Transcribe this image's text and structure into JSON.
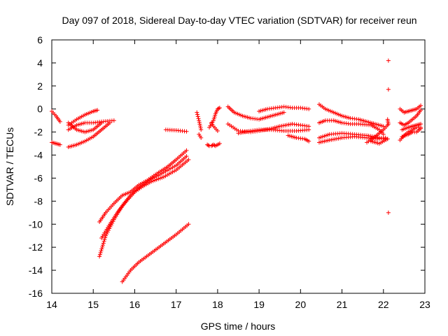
{
  "chart_data": {
    "type": "scatter",
    "title": "Day 097 of 2018, Sidereal Day-to-day VTEC variation (SDTVAR) for receiver reun",
    "xlabel": "GPS time / hours",
    "ylabel": "SDTVAR / TECUs",
    "xlim": [
      14,
      23
    ],
    "ylim": [
      -16,
      6
    ],
    "xticks": [
      "14",
      "15",
      "16",
      "17",
      "18",
      "19",
      "20",
      "21",
      "22",
      "23"
    ],
    "yticks": [
      "-16",
      "-14",
      "-12",
      "-10",
      "-8",
      "-6",
      "-4",
      "-2",
      "0",
      "2",
      "4",
      "6"
    ],
    "grid": false,
    "marker": "plus",
    "color": "#ff0000",
    "tracks": [
      {
        "x": [
          14.0,
          14.1,
          14.2
        ],
        "y": [
          -0.2,
          -0.6,
          -1.1
        ]
      },
      {
        "x": [
          14.0,
          14.1,
          14.2
        ],
        "y": [
          -2.9,
          -3.0,
          -3.1
        ]
      },
      {
        "x": [
          14.4,
          14.6,
          14.8,
          15.0,
          15.1
        ],
        "y": [
          -1.4,
          -0.9,
          -0.5,
          -0.2,
          -0.1
        ]
      },
      {
        "x": [
          14.4,
          14.6,
          14.8,
          15.0,
          15.2,
          15.5
        ],
        "y": [
          -1.8,
          -1.4,
          -1.2,
          -1.2,
          -1.1,
          -1.0
        ]
      },
      {
        "x": [
          14.4,
          14.6,
          14.8,
          15.0,
          15.2
        ],
        "y": [
          -1.2,
          -1.8,
          -2.0,
          -1.8,
          -1.2
        ]
      },
      {
        "x": [
          14.4,
          14.6,
          14.8,
          15.0,
          15.2,
          15.4
        ],
        "y": [
          -3.3,
          -3.1,
          -2.8,
          -2.4,
          -1.8,
          -1.2
        ]
      },
      {
        "x": [
          15.15,
          15.3,
          15.5,
          15.7,
          15.9,
          16.1,
          16.3,
          16.5,
          16.8,
          17.0,
          17.25
        ],
        "y": [
          -9.8,
          -9.0,
          -8.2,
          -7.5,
          -7.2,
          -6.6,
          -6.2,
          -5.7,
          -5.0,
          -4.4,
          -3.6
        ]
      },
      {
        "x": [
          15.15,
          15.3,
          15.5,
          15.7,
          15.9,
          16.1,
          16.4,
          16.7,
          17.0,
          17.25
        ],
        "y": [
          -12.8,
          -11.0,
          -9.6,
          -8.4,
          -7.5,
          -6.8,
          -6.1,
          -5.5,
          -4.9,
          -4.1
        ]
      },
      {
        "x": [
          15.2,
          15.4,
          15.6,
          15.8,
          16.0,
          16.2,
          16.4,
          16.7,
          17.0,
          17.3
        ],
        "y": [
          -11.2,
          -10.0,
          -8.9,
          -8.0,
          -7.2,
          -6.7,
          -6.3,
          -5.9,
          -5.3,
          -4.4
        ]
      },
      {
        "x": [
          15.7,
          15.9,
          16.1,
          16.4,
          16.7,
          17.0,
          17.3
        ],
        "y": [
          -15.0,
          -14.0,
          -13.3,
          -12.5,
          -11.7,
          -10.9,
          -10.0
        ]
      },
      {
        "x": [
          16.75,
          17.0,
          17.25
        ],
        "y": [
          -1.8,
          -1.85,
          -1.95
        ]
      },
      {
        "x": [
          17.5,
          17.55,
          17.6
        ],
        "y": [
          -0.3,
          -1.0,
          -1.8
        ]
      },
      {
        "x": [
          17.55,
          17.6
        ],
        "y": [
          -2.2,
          -2.5
        ]
      },
      {
        "x": [
          17.75,
          17.8,
          17.85,
          17.9,
          17.95,
          18.05
        ],
        "y": [
          -3.1,
          -3.2,
          -3.2,
          -3.1,
          -3.2,
          -3.0
        ]
      },
      {
        "x": [
          17.8,
          17.9,
          17.95,
          18.0,
          18.05
        ],
        "y": [
          -1.6,
          -1.0,
          -0.4,
          0.0,
          0.1
        ]
      },
      {
        "x": [
          17.85,
          17.9,
          18.0
        ],
        "y": [
          -1.2,
          -1.5,
          -1.9
        ]
      },
      {
        "x": [
          18.25,
          18.4,
          18.6,
          18.8,
          19.0,
          19.2,
          19.4,
          19.6
        ],
        "y": [
          0.2,
          -0.3,
          -0.6,
          -0.8,
          -0.9,
          -0.7,
          -0.5,
          -0.3
        ]
      },
      {
        "x": [
          18.25,
          18.5,
          18.8,
          19.0,
          19.3,
          19.5,
          19.8,
          20.0,
          20.2
        ],
        "y": [
          -1.3,
          -1.9,
          -2.0,
          -1.9,
          -1.7,
          -1.5,
          -1.3,
          -1.4,
          -1.5
        ]
      },
      {
        "x": [
          18.5,
          18.8,
          19.0,
          19.3,
          19.6,
          19.9,
          20.2
        ],
        "y": [
          -2.1,
          -1.9,
          -1.8,
          -1.8,
          -1.9,
          -1.9,
          -1.8
        ]
      },
      {
        "x": [
          19.0,
          19.2,
          19.4,
          19.6,
          19.8,
          20.0,
          20.2
        ],
        "y": [
          -0.2,
          0.0,
          0.1,
          0.2,
          0.1,
          0.1,
          0.0
        ]
      },
      {
        "x": [
          19.7,
          19.9,
          20.1,
          20.2
        ],
        "y": [
          -2.3,
          -2.5,
          -2.6,
          -2.8
        ]
      },
      {
        "x": [
          20.45,
          20.6,
          20.8,
          21.0,
          21.2,
          21.4,
          21.6,
          21.8,
          22.0
        ],
        "y": [
          0.4,
          0.0,
          -0.3,
          -0.6,
          -0.8,
          -0.9,
          -1.1,
          -1.3,
          -1.5
        ]
      },
      {
        "x": [
          20.45,
          20.6,
          20.8,
          21.0,
          21.2,
          21.4,
          21.7,
          21.9,
          22.0
        ],
        "y": [
          -1.2,
          -1.0,
          -1.0,
          -1.2,
          -1.3,
          -1.3,
          -1.4,
          -1.8,
          -2.2
        ]
      },
      {
        "x": [
          20.45,
          20.7,
          21.0,
          21.3,
          21.6,
          21.9,
          22.1
        ],
        "y": [
          -2.5,
          -2.2,
          -2.1,
          -2.2,
          -2.3,
          -2.5,
          -2.6
        ]
      },
      {
        "x": [
          20.45,
          20.7,
          21.0,
          21.3,
          21.6,
          21.85,
          22.05
        ],
        "y": [
          -2.9,
          -2.7,
          -2.5,
          -2.4,
          -2.5,
          -2.6,
          -2.5
        ]
      },
      {
        "x": [
          21.6,
          21.8,
          22.0,
          22.1
        ],
        "y": [
          -2.9,
          -2.4,
          -1.8,
          -1.4
        ]
      },
      {
        "x": [
          21.7,
          21.9,
          22.1
        ],
        "y": [
          -2.8,
          -3.0,
          -2.6
        ]
      },
      {
        "x": [
          22.1,
          22.12
        ],
        "y": [
          -0.9,
          -1.3
        ]
      },
      {
        "x": [
          22.12
        ],
        "y": [
          4.2
        ]
      },
      {
        "x": [
          22.12
        ],
        "y": [
          1.7
        ]
      },
      {
        "x": [
          22.12
        ],
        "y": [
          -9.0
        ]
      },
      {
        "x": [
          22.4,
          22.5,
          22.6,
          22.7,
          22.8,
          22.9
        ],
        "y": [
          0.0,
          -0.3,
          -0.2,
          -0.1,
          0.0,
          0.3
        ]
      },
      {
        "x": [
          22.4,
          22.5,
          22.6,
          22.7,
          22.8,
          22.9
        ],
        "y": [
          -1.2,
          -1.4,
          -1.2,
          -0.9,
          -0.6,
          -0.1
        ]
      },
      {
        "x": [
          22.45,
          22.6,
          22.7,
          22.8,
          22.9
        ],
        "y": [
          -1.8,
          -1.6,
          -1.5,
          -1.4,
          -1.3
        ]
      },
      {
        "x": [
          22.45,
          22.6,
          22.7,
          22.8,
          22.9
        ],
        "y": [
          -2.4,
          -2.2,
          -2.0,
          -2.0,
          -1.7
        ]
      },
      {
        "x": [
          22.4,
          22.5,
          22.6,
          22.8,
          22.9
        ],
        "y": [
          -2.7,
          -2.3,
          -2.0,
          -1.6,
          -1.6
        ]
      }
    ]
  }
}
